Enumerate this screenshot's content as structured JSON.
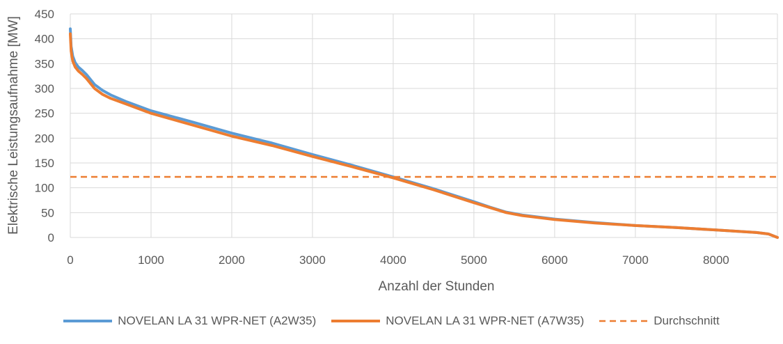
{
  "chart_data": {
    "type": "line",
    "title": "",
    "xlabel": "Anzahl der Stunden",
    "ylabel": "Elektrische Leistungsaufnahme [MW]",
    "xlim": [
      0,
      8760
    ],
    "ylim": [
      0,
      450
    ],
    "x_ticks": [
      "0",
      "1000",
      "2000",
      "3000",
      "4000",
      "5000",
      "6000",
      "7000",
      "8000"
    ],
    "y_ticks": [
      "0",
      "50",
      "100",
      "150",
      "200",
      "250",
      "300",
      "350",
      "400",
      "450"
    ],
    "grid": true,
    "legend_position": "bottom",
    "series": [
      {
        "name": "NOVELAN LA 31 WPR-NET (A2W35)",
        "color": "#5B9BD5",
        "style": "solid",
        "x": [
          0,
          10,
          30,
          60,
          100,
          150,
          200,
          300,
          400,
          500,
          700,
          1000,
          1500,
          2000,
          2500,
          3000,
          3500,
          4000,
          4500,
          5000,
          5200,
          5400,
          5600,
          6000,
          6500,
          7000,
          7500,
          8000,
          8500,
          8650,
          8760
        ],
        "y": [
          420,
          385,
          365,
          352,
          343,
          336,
          328,
          308,
          296,
          287,
          273,
          255,
          233,
          210,
          190,
          167,
          145,
          122,
          98,
          72,
          61,
          51,
          45,
          37,
          30,
          24,
          20,
          15,
          10,
          7,
          0
        ]
      },
      {
        "name": "NOVELAN LA 31 WPR-NET (A7W35)",
        "color": "#ED7D31",
        "style": "solid",
        "x": [
          0,
          10,
          30,
          60,
          100,
          150,
          200,
          300,
          400,
          500,
          700,
          1000,
          1500,
          2000,
          2500,
          3000,
          3500,
          4000,
          4500,
          5000,
          5200,
          5400,
          5600,
          6000,
          6500,
          7000,
          7500,
          8000,
          8500,
          8650,
          8760
        ],
        "y": [
          410,
          375,
          355,
          343,
          335,
          328,
          320,
          300,
          288,
          280,
          268,
          250,
          227,
          204,
          185,
          163,
          142,
          120,
          96,
          70,
          60,
          50,
          44,
          36,
          29,
          24,
          20,
          15,
          10,
          7,
          0
        ]
      },
      {
        "name": "Durchschnitt",
        "color": "#ED7D31",
        "style": "dashed",
        "x": [
          0,
          8760
        ],
        "y": [
          122,
          122
        ]
      }
    ]
  }
}
